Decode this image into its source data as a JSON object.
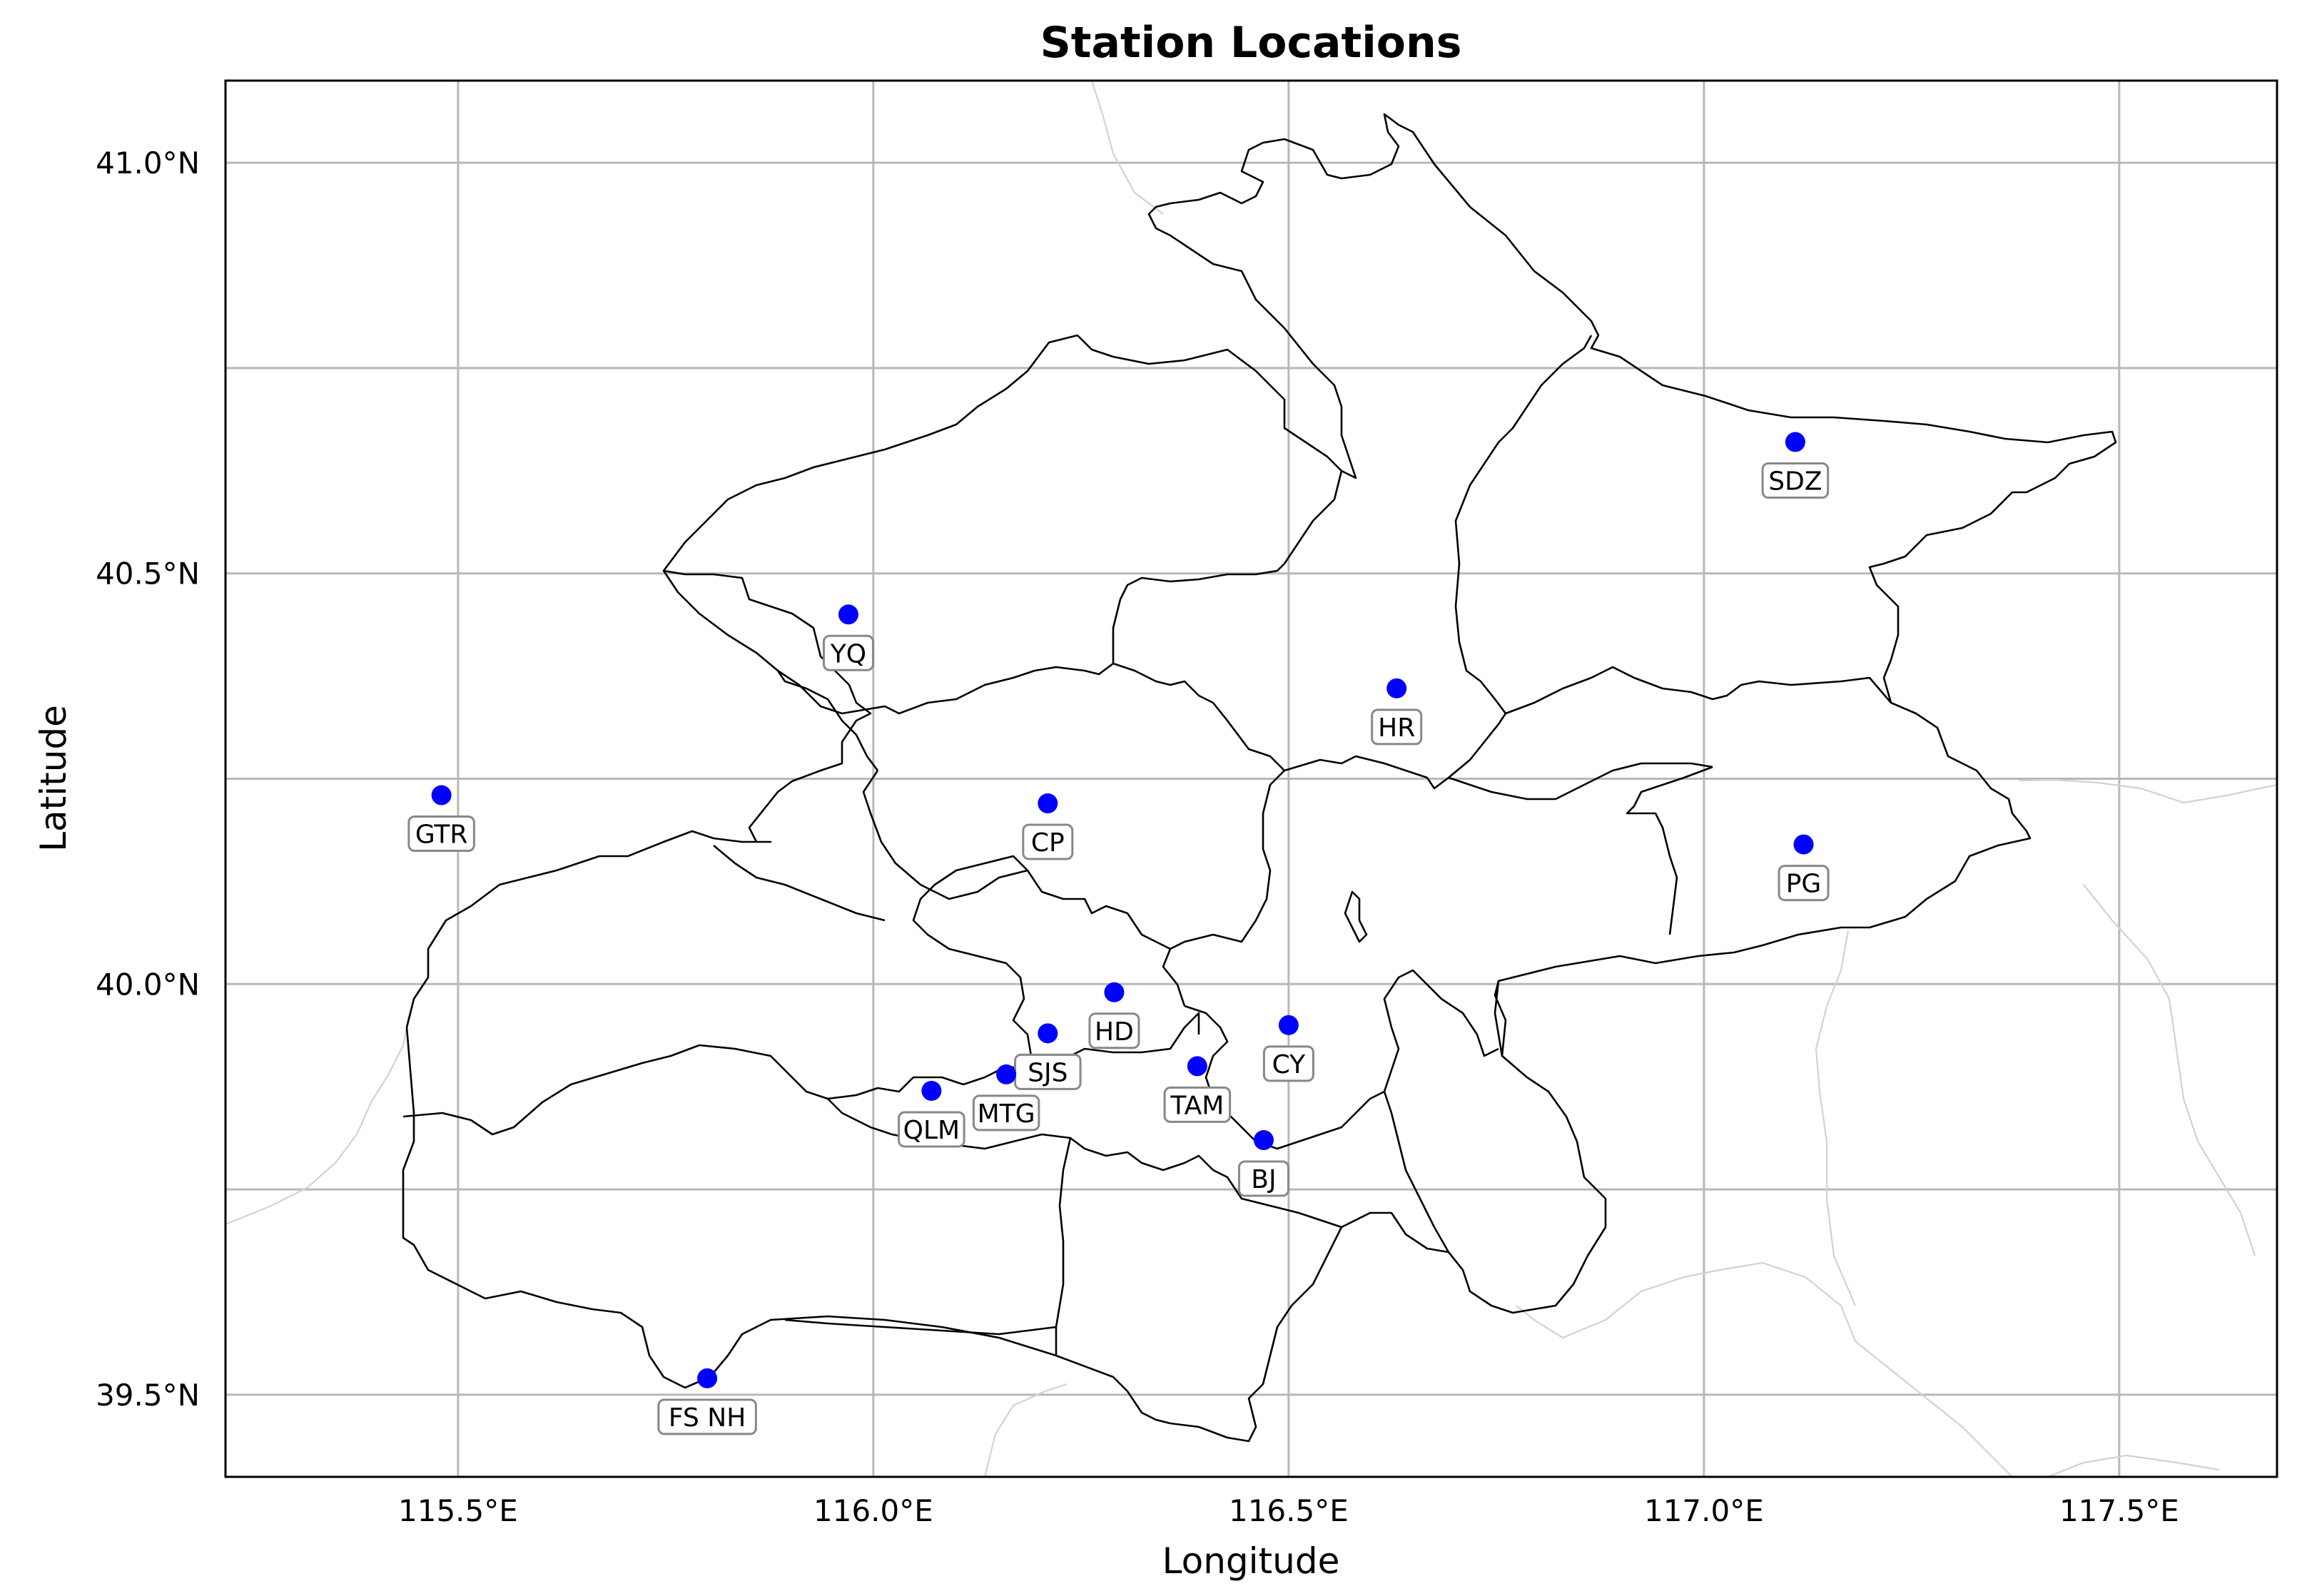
{
  "map": {
    "title": "Station Locations",
    "xlabel": "Longitude",
    "ylabel": "Latitude",
    "lon_range": [
      115.22,
      117.69
    ],
    "lat_range": [
      39.4,
      41.1
    ],
    "lon_ticks": [
      {
        "value": 115.5,
        "label": "115.5°E"
      },
      {
        "value": 116.0,
        "label": "116.0°E"
      },
      {
        "value": 116.5,
        "label": "116.5°E"
      },
      {
        "value": 117.0,
        "label": "117.0°E"
      },
      {
        "value": 117.5,
        "label": "117.5°E"
      }
    ],
    "lat_ticks": [
      {
        "value": 39.5,
        "label": "39.5°N"
      },
      {
        "value": 40.0,
        "label": "40.0°N"
      },
      {
        "value": 40.5,
        "label": "40.5°N"
      },
      {
        "value": 41.0,
        "label": "41.0°N"
      }
    ],
    "minor_gridlines": {
      "lon": [],
      "lat": [
        39.75,
        40.25,
        40.75
      ]
    },
    "grid": true,
    "marker_color": "#0000ff",
    "stations": [
      {
        "label": "GTR",
        "lon": 115.48,
        "lat": 40.23
      },
      {
        "label": "YQ",
        "lon": 115.97,
        "lat": 40.45
      },
      {
        "label": "CP",
        "lon": 116.21,
        "lat": 40.22
      },
      {
        "label": "HR",
        "lon": 116.63,
        "lat": 40.36
      },
      {
        "label": "SDZ",
        "lon": 117.11,
        "lat": 40.66
      },
      {
        "label": "PG",
        "lon": 117.12,
        "lat": 40.17
      },
      {
        "label": "HD",
        "lon": 116.29,
        "lat": 39.99
      },
      {
        "label": "SJS",
        "lon": 116.21,
        "lat": 39.94
      },
      {
        "label": "MTG",
        "lon": 116.16,
        "lat": 39.89
      },
      {
        "label": "QLM",
        "lon": 116.07,
        "lat": 39.87
      },
      {
        "label": "TAM",
        "lon": 116.39,
        "lat": 39.9
      },
      {
        "label": "CY",
        "lon": 116.5,
        "lat": 39.95
      },
      {
        "label": "BJ",
        "lon": 116.47,
        "lat": 39.81
      },
      {
        "label": "FS NH",
        "lon": 115.8,
        "lat": 39.52
      }
    ]
  }
}
